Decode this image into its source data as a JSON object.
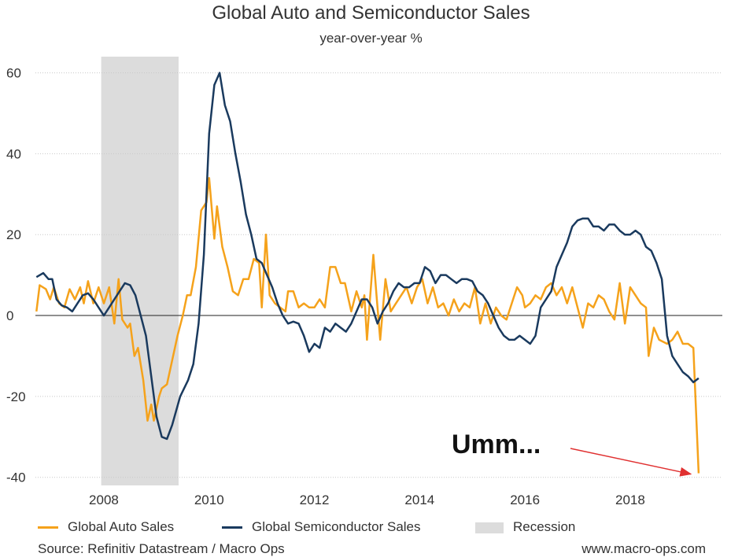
{
  "chart_data": {
    "type": "line",
    "title": "Global Auto and Semiconductor Sales",
    "subtitle": "year-over-year %",
    "ylim": [
      -42,
      64
    ],
    "yticks": [
      60,
      40,
      20,
      0,
      -20,
      -40
    ],
    "ytick_labels": [
      "60",
      "40",
      "20",
      "0",
      "-20",
      "-40"
    ],
    "xlim": [
      2006.7,
      2019.75
    ],
    "xticks": [
      2008,
      2010,
      2012,
      2014,
      2016,
      2018
    ],
    "xtick_labels": [
      "2008",
      "2010",
      "2012",
      "2014",
      "2016",
      "2018"
    ],
    "recession": {
      "label": "Recession",
      "start": 2007.95,
      "end": 2009.42,
      "color": "#dcdcdc"
    },
    "series": [
      {
        "name": "Global Auto Sales",
        "color": "#f5a21b",
        "points": [
          [
            2006.72,
            1
          ],
          [
            2006.78,
            7.5
          ],
          [
            2006.9,
            6.5
          ],
          [
            2006.98,
            4
          ],
          [
            2007.05,
            7
          ],
          [
            2007.15,
            3
          ],
          [
            2007.25,
            2
          ],
          [
            2007.35,
            6.5
          ],
          [
            2007.45,
            4
          ],
          [
            2007.55,
            7
          ],
          [
            2007.62,
            3
          ],
          [
            2007.7,
            8.5
          ],
          [
            2007.8,
            3
          ],
          [
            2007.9,
            7
          ],
          [
            2008.0,
            3
          ],
          [
            2008.1,
            7
          ],
          [
            2008.2,
            -2
          ],
          [
            2008.28,
            9
          ],
          [
            2008.35,
            -1
          ],
          [
            2008.45,
            -3
          ],
          [
            2008.5,
            -2
          ],
          [
            2008.58,
            -10
          ],
          [
            2008.65,
            -8
          ],
          [
            2008.75,
            -16
          ],
          [
            2008.83,
            -26
          ],
          [
            2008.9,
            -22
          ],
          [
            2008.95,
            -26
          ],
          [
            2009.05,
            -20
          ],
          [
            2009.1,
            -18
          ],
          [
            2009.2,
            -17
          ],
          [
            2009.3,
            -11
          ],
          [
            2009.4,
            -5
          ],
          [
            2009.5,
            0
          ],
          [
            2009.58,
            5
          ],
          [
            2009.65,
            5
          ],
          [
            2009.75,
            12
          ],
          [
            2009.85,
            26
          ],
          [
            2009.95,
            28
          ],
          [
            2010.0,
            34
          ],
          [
            2010.1,
            19
          ],
          [
            2010.15,
            27
          ],
          [
            2010.25,
            17
          ],
          [
            2010.35,
            12
          ],
          [
            2010.45,
            6
          ],
          [
            2010.55,
            5
          ],
          [
            2010.65,
            9
          ],
          [
            2010.75,
            9
          ],
          [
            2010.85,
            14
          ],
          [
            2010.95,
            13
          ],
          [
            2011.0,
            2
          ],
          [
            2011.08,
            20
          ],
          [
            2011.15,
            5
          ],
          [
            2011.25,
            3
          ],
          [
            2011.35,
            2
          ],
          [
            2011.45,
            1
          ],
          [
            2011.5,
            6
          ],
          [
            2011.6,
            6
          ],
          [
            2011.7,
            2
          ],
          [
            2011.8,
            3
          ],
          [
            2011.9,
            2
          ],
          [
            2012.0,
            2
          ],
          [
            2012.1,
            4
          ],
          [
            2012.2,
            2
          ],
          [
            2012.3,
            12
          ],
          [
            2012.4,
            12
          ],
          [
            2012.5,
            8
          ],
          [
            2012.58,
            8
          ],
          [
            2012.7,
            1
          ],
          [
            2012.8,
            6
          ],
          [
            2012.9,
            2
          ],
          [
            2012.95,
            5
          ],
          [
            2013.0,
            -6
          ],
          [
            2013.05,
            3
          ],
          [
            2013.12,
            15
          ],
          [
            2013.18,
            5
          ],
          [
            2013.25,
            -6
          ],
          [
            2013.35,
            9
          ],
          [
            2013.45,
            1
          ],
          [
            2013.55,
            3
          ],
          [
            2013.65,
            5
          ],
          [
            2013.75,
            7
          ],
          [
            2013.85,
            3
          ],
          [
            2013.95,
            7
          ],
          [
            2014.05,
            9
          ],
          [
            2014.15,
            3
          ],
          [
            2014.25,
            7
          ],
          [
            2014.35,
            2
          ],
          [
            2014.45,
            3
          ],
          [
            2014.55,
            0
          ],
          [
            2014.65,
            4
          ],
          [
            2014.75,
            1
          ],
          [
            2014.85,
            3
          ],
          [
            2014.95,
            2
          ],
          [
            2015.05,
            7
          ],
          [
            2015.15,
            -2
          ],
          [
            2015.25,
            3
          ],
          [
            2015.35,
            -2
          ],
          [
            2015.45,
            2
          ],
          [
            2015.55,
            0
          ],
          [
            2015.65,
            -1
          ],
          [
            2015.75,
            3
          ],
          [
            2015.85,
            7
          ],
          [
            2015.95,
            5
          ],
          [
            2016.0,
            2
          ],
          [
            2016.1,
            3
          ],
          [
            2016.2,
            5
          ],
          [
            2016.3,
            4
          ],
          [
            2016.4,
            7
          ],
          [
            2016.5,
            8
          ],
          [
            2016.6,
            5
          ],
          [
            2016.7,
            7
          ],
          [
            2016.8,
            3
          ],
          [
            2016.9,
            7
          ],
          [
            2017.0,
            2
          ],
          [
            2017.1,
            -3
          ],
          [
            2017.2,
            3
          ],
          [
            2017.3,
            2
          ],
          [
            2017.4,
            5
          ],
          [
            2017.5,
            4
          ],
          [
            2017.6,
            1
          ],
          [
            2017.7,
            -1
          ],
          [
            2017.8,
            8
          ],
          [
            2017.9,
            -2
          ],
          [
            2018.0,
            7
          ],
          [
            2018.1,
            5
          ],
          [
            2018.2,
            3
          ],
          [
            2018.3,
            2
          ],
          [
            2018.35,
            -10
          ],
          [
            2018.45,
            -3
          ],
          [
            2018.55,
            -6
          ],
          [
            2018.7,
            -7
          ],
          [
            2018.8,
            -6
          ],
          [
            2018.9,
            -4
          ],
          [
            2019.0,
            -7
          ],
          [
            2019.1,
            -7
          ],
          [
            2019.2,
            -8
          ],
          [
            2019.3,
            -39
          ]
        ]
      },
      {
        "name": "Global Semiconductor Sales",
        "color": "#1a3a5e",
        "points": [
          [
            2006.72,
            9.5
          ],
          [
            2006.85,
            10.5
          ],
          [
            2006.95,
            9
          ],
          [
            2007.02,
            9
          ],
          [
            2007.1,
            4
          ],
          [
            2007.2,
            2.5
          ],
          [
            2007.3,
            2
          ],
          [
            2007.4,
            1
          ],
          [
            2007.5,
            3
          ],
          [
            2007.6,
            5
          ],
          [
            2007.7,
            5.5
          ],
          [
            2007.8,
            4
          ],
          [
            2007.9,
            2
          ],
          [
            2008.0,
            0
          ],
          [
            2008.1,
            2
          ],
          [
            2008.2,
            4
          ],
          [
            2008.3,
            6
          ],
          [
            2008.4,
            8
          ],
          [
            2008.5,
            7.5
          ],
          [
            2008.6,
            5
          ],
          [
            2008.7,
            0
          ],
          [
            2008.8,
            -5
          ],
          [
            2008.9,
            -15
          ],
          [
            2009.0,
            -25
          ],
          [
            2009.1,
            -30
          ],
          [
            2009.2,
            -30.5
          ],
          [
            2009.3,
            -27
          ],
          [
            2009.45,
            -20
          ],
          [
            2009.6,
            -16
          ],
          [
            2009.7,
            -12
          ],
          [
            2009.8,
            -2
          ],
          [
            2009.9,
            15
          ],
          [
            2010.0,
            45
          ],
          [
            2010.1,
            57
          ],
          [
            2010.2,
            60
          ],
          [
            2010.3,
            52
          ],
          [
            2010.4,
            48
          ],
          [
            2010.5,
            40
          ],
          [
            2010.6,
            33
          ],
          [
            2010.7,
            25
          ],
          [
            2010.8,
            20
          ],
          [
            2010.9,
            14
          ],
          [
            2011.0,
            13
          ],
          [
            2011.1,
            10
          ],
          [
            2011.2,
            7
          ],
          [
            2011.3,
            3
          ],
          [
            2011.4,
            0
          ],
          [
            2011.5,
            -2
          ],
          [
            2011.6,
            -1.5
          ],
          [
            2011.7,
            -2
          ],
          [
            2011.8,
            -5
          ],
          [
            2011.9,
            -9
          ],
          [
            2012.0,
            -7
          ],
          [
            2012.1,
            -8
          ],
          [
            2012.2,
            -3
          ],
          [
            2012.3,
            -4
          ],
          [
            2012.4,
            -2
          ],
          [
            2012.5,
            -3
          ],
          [
            2012.6,
            -4
          ],
          [
            2012.7,
            -2
          ],
          [
            2012.8,
            1
          ],
          [
            2012.9,
            4
          ],
          [
            2013.0,
            4
          ],
          [
            2013.1,
            2
          ],
          [
            2013.2,
            -2
          ],
          [
            2013.3,
            1
          ],
          [
            2013.4,
            3
          ],
          [
            2013.5,
            6
          ],
          [
            2013.6,
            8
          ],
          [
            2013.7,
            7
          ],
          [
            2013.8,
            7
          ],
          [
            2013.9,
            8
          ],
          [
            2014.0,
            8
          ],
          [
            2014.1,
            12
          ],
          [
            2014.2,
            11
          ],
          [
            2014.3,
            8
          ],
          [
            2014.4,
            10
          ],
          [
            2014.5,
            10
          ],
          [
            2014.6,
            9
          ],
          [
            2014.7,
            8
          ],
          [
            2014.8,
            9
          ],
          [
            2014.9,
            9
          ],
          [
            2015.0,
            8.5
          ],
          [
            2015.1,
            6
          ],
          [
            2015.2,
            5
          ],
          [
            2015.3,
            3
          ],
          [
            2015.4,
            0
          ],
          [
            2015.5,
            -3
          ],
          [
            2015.6,
            -5
          ],
          [
            2015.7,
            -6
          ],
          [
            2015.8,
            -6
          ],
          [
            2015.9,
            -5
          ],
          [
            2016.0,
            -6
          ],
          [
            2016.1,
            -7
          ],
          [
            2016.2,
            -5
          ],
          [
            2016.3,
            2
          ],
          [
            2016.4,
            4
          ],
          [
            2016.5,
            6
          ],
          [
            2016.6,
            12
          ],
          [
            2016.7,
            15
          ],
          [
            2016.8,
            18
          ],
          [
            2016.9,
            22
          ],
          [
            2017.0,
            23.5
          ],
          [
            2017.1,
            24
          ],
          [
            2017.2,
            24
          ],
          [
            2017.3,
            22
          ],
          [
            2017.4,
            22
          ],
          [
            2017.5,
            21
          ],
          [
            2017.6,
            22.5
          ],
          [
            2017.7,
            22.5
          ],
          [
            2017.8,
            21
          ],
          [
            2017.9,
            20
          ],
          [
            2018.0,
            20
          ],
          [
            2018.1,
            21
          ],
          [
            2018.2,
            20
          ],
          [
            2018.3,
            17
          ],
          [
            2018.4,
            16
          ],
          [
            2018.5,
            13
          ],
          [
            2018.6,
            9
          ],
          [
            2018.7,
            -5
          ],
          [
            2018.8,
            -10
          ],
          [
            2018.9,
            -12
          ],
          [
            2019.0,
            -14
          ],
          [
            2019.1,
            -15
          ],
          [
            2019.2,
            -16.5
          ],
          [
            2019.3,
            -15.5
          ]
        ]
      }
    ],
    "annotation": {
      "text": "Umm...",
      "target": [
        2019.27,
        -39
      ]
    }
  },
  "footer": {
    "source": "Source: Refinitiv Datastream / Macro Ops",
    "website": "www.macro-ops.com"
  }
}
